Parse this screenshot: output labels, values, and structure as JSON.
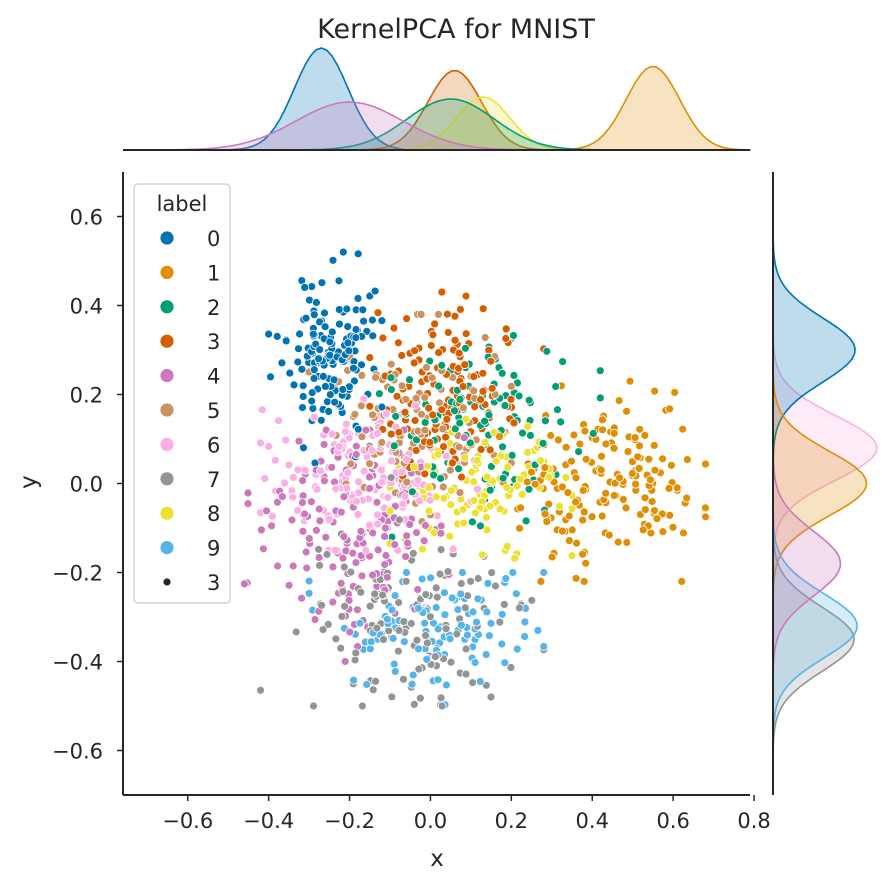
{
  "chart_data": {
    "type": "scatter",
    "title": "KernelPCA for MNIST",
    "xlabel": "x",
    "ylabel": "y",
    "xlim": [
      -0.76,
      0.79
    ],
    "ylim": [
      -0.7,
      0.7
    ],
    "xticks": [
      -0.6,
      -0.4,
      -0.2,
      0.0,
      0.2,
      0.4,
      0.6,
      0.8
    ],
    "xtick_labels": [
      "−0.6",
      "−0.4",
      "−0.2",
      "0.0",
      "0.2",
      "0.4",
      "0.6",
      "0.8"
    ],
    "yticks": [
      0.6,
      0.4,
      0.2,
      0.0,
      -0.2,
      -0.4,
      -0.6
    ],
    "ytick_labels": [
      "0.6",
      "0.4",
      "0.2",
      "0.0",
      "−0.2",
      "−0.4",
      "−0.6"
    ],
    "grid": false,
    "marginals": "kde density plots on top (x) and right (y), filled per class",
    "legend": {
      "title": "label",
      "placement": "upper-left",
      "entries": [
        {
          "label": "0",
          "color": "#0173b2"
        },
        {
          "label": "1",
          "color": "#de8f05"
        },
        {
          "label": "2",
          "color": "#029e73"
        },
        {
          "label": "3",
          "color": "#d55e00"
        },
        {
          "label": "4",
          "color": "#cc78bc"
        },
        {
          "label": "5",
          "color": "#ca9161"
        },
        {
          "label": "6",
          "color": "#fbafe4"
        },
        {
          "label": "7",
          "color": "#949494"
        },
        {
          "label": "8",
          "color": "#ece133"
        },
        {
          "label": "9",
          "color": "#56b4e9"
        },
        {
          "label": "3",
          "color": "#262626",
          "kind": "size"
        }
      ]
    },
    "clusters": [
      {
        "label": "0",
        "color": "#0173b2",
        "center": [
          -0.25,
          0.3
        ],
        "spread": [
          0.055,
          0.085
        ],
        "count": 150,
        "range": [
          [
            -0.4,
            -0.12
          ],
          [
            0.04,
            0.52
          ]
        ]
      },
      {
        "label": "1",
        "color": "#de8f05",
        "center": [
          0.45,
          0.0
        ],
        "spread": [
          0.12,
          0.1
        ],
        "count": 170,
        "range": [
          [
            0.12,
            0.68
          ],
          [
            -0.22,
            0.23
          ]
        ]
      },
      {
        "label": "2",
        "color": "#029e73",
        "center": [
          0.12,
          0.15
        ],
        "spread": [
          0.12,
          0.1
        ],
        "count": 110,
        "range": [
          [
            -0.2,
            0.42
          ],
          [
            -0.14,
            0.42
          ]
        ]
      },
      {
        "label": "3",
        "color": "#d55e00",
        "center": [
          0.05,
          0.2
        ],
        "spread": [
          0.09,
          0.1
        ],
        "count": 150,
        "range": [
          [
            -0.15,
            0.28
          ],
          [
            -0.12,
            0.43
          ]
        ]
      },
      {
        "label": "4",
        "color": "#cc78bc",
        "center": [
          -0.2,
          -0.12
        ],
        "spread": [
          0.11,
          0.12
        ],
        "count": 160,
        "range": [
          [
            -0.46,
            0.22
          ],
          [
            -0.4,
            0.12
          ]
        ]
      },
      {
        "label": "5",
        "color": "#ca9161",
        "center": [
          -0.05,
          0.12
        ],
        "spread": [
          0.1,
          0.11
        ],
        "count": 110,
        "range": [
          [
            -0.3,
            0.2
          ],
          [
            -0.15,
            0.38
          ]
        ]
      },
      {
        "label": "6",
        "color": "#fbafe4",
        "center": [
          -0.15,
          0.03
        ],
        "spread": [
          0.12,
          0.08
        ],
        "count": 140,
        "range": [
          [
            -0.42,
            0.15
          ],
          [
            -0.15,
            0.3
          ]
        ]
      },
      {
        "label": "7",
        "color": "#949494",
        "center": [
          -0.05,
          -0.3
        ],
        "spread": [
          0.14,
          0.1
        ],
        "count": 130,
        "range": [
          [
            -0.42,
            0.28
          ],
          [
            -0.5,
            0.05
          ]
        ]
      },
      {
        "label": "8",
        "color": "#ece133",
        "center": [
          0.12,
          0.0
        ],
        "spread": [
          0.1,
          0.07
        ],
        "count": 110,
        "range": [
          [
            -0.1,
            0.35
          ],
          [
            -0.18,
            0.22
          ]
        ]
      },
      {
        "label": "9",
        "color": "#56b4e9",
        "center": [
          0.05,
          -0.33
        ],
        "spread": [
          0.13,
          0.07
        ],
        "count": 110,
        "range": [
          [
            -0.3,
            0.28
          ],
          [
            -0.5,
            -0.2
          ]
        ]
      }
    ],
    "marginal_x": {
      "bandwidth": 0.06,
      "curves": [
        {
          "label": "0",
          "peak_at": -0.27,
          "peak_height": 1.0
        },
        {
          "label": "1",
          "peak_at": 0.55,
          "peak_height": 0.82
        },
        {
          "label": "3",
          "peak_at": 0.06,
          "peak_height": 0.78
        },
        {
          "label": "8",
          "peak_at": 0.13,
          "peak_height": 0.52
        },
        {
          "label": "2",
          "peak_at": 0.05,
          "peak_height": 0.5
        },
        {
          "label": "4",
          "peak_at": -0.2,
          "peak_height": 0.47
        }
      ]
    },
    "marginal_y": {
      "bandwidth": 0.06,
      "curves": [
        {
          "label": "6",
          "peak_at": 0.08,
          "peak_height": 1.0
        },
        {
          "label": "0",
          "peak_at": 0.3,
          "peak_height": 0.79
        },
        {
          "label": "1",
          "peak_at": 0.0,
          "peak_height": 0.9
        },
        {
          "label": "7",
          "peak_at": -0.35,
          "peak_height": 0.78
        },
        {
          "label": "9",
          "peak_at": -0.32,
          "peak_height": 0.81
        },
        {
          "label": "4",
          "peak_at": -0.18,
          "peak_height": 0.65
        }
      ]
    }
  }
}
